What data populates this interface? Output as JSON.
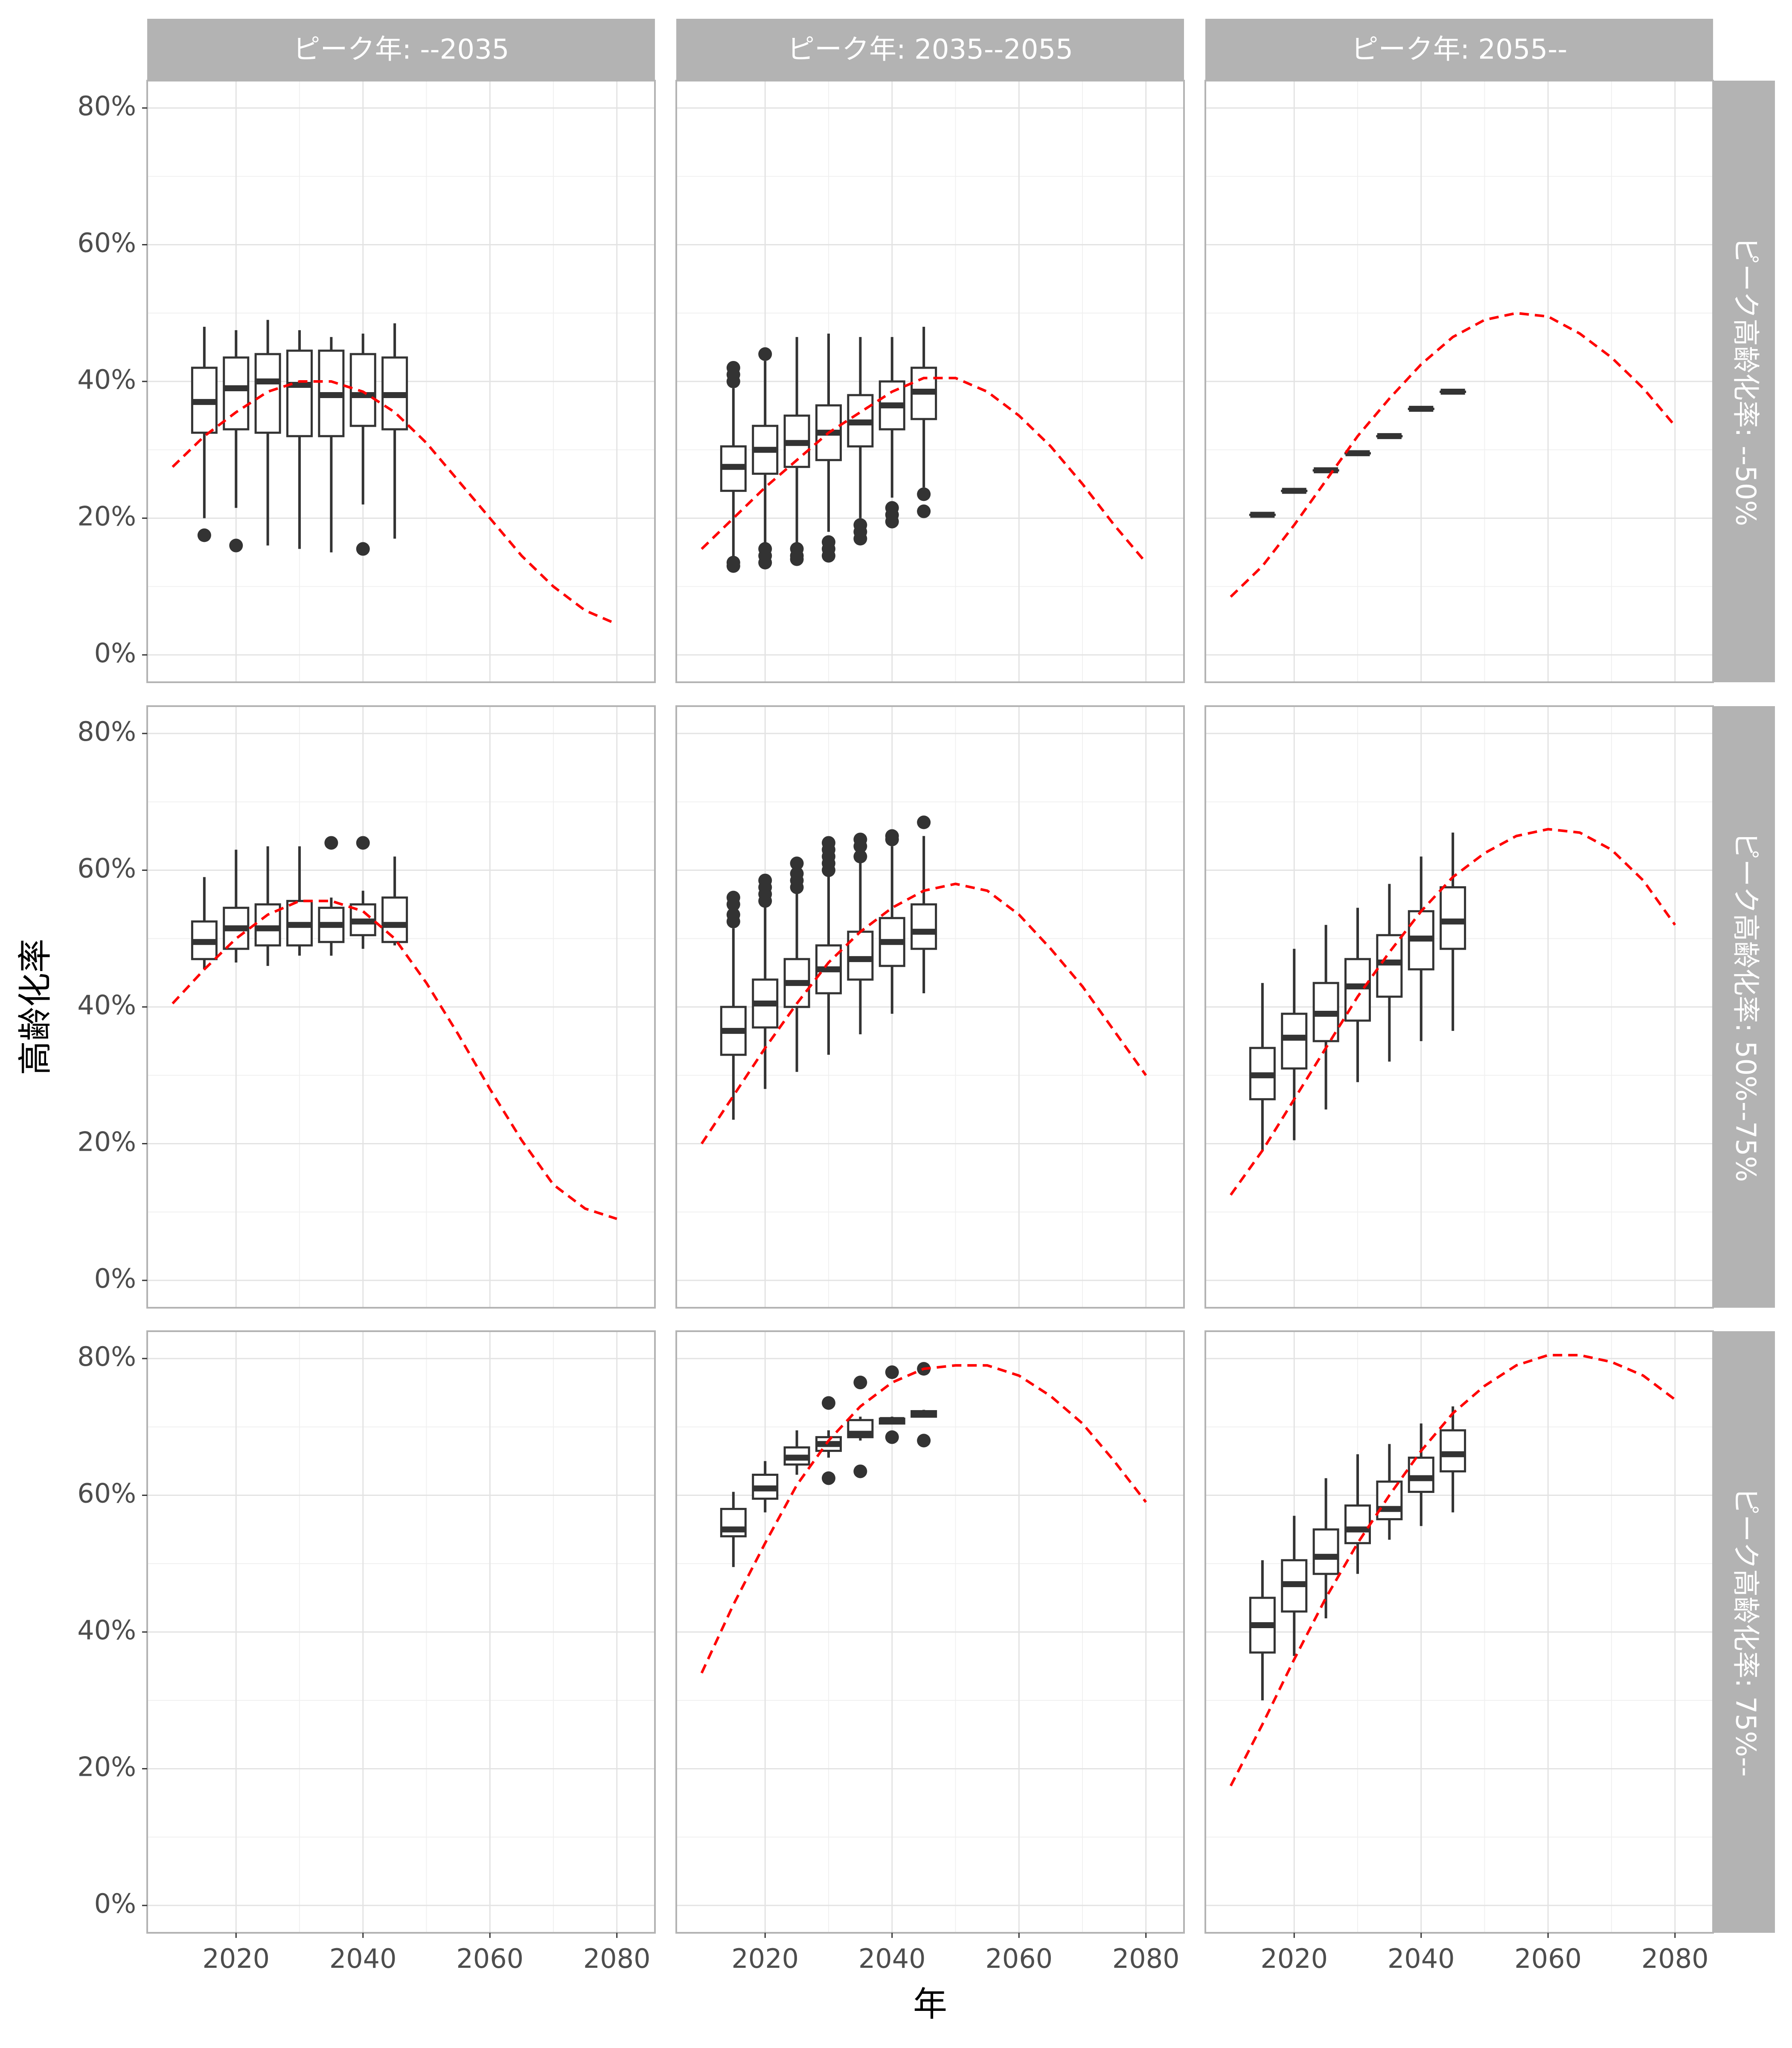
{
  "chart_data": {
    "type": "box",
    "facet_columns": [
      "ピーク年: --2035",
      "ピーク年: 2035--2055",
      "ピーク年: 2055--"
    ],
    "facet_rows": [
      "ピーク高齢化率: --50%",
      "ピーク高齢化率: 50%--75%",
      "ピーク高齢化率: 75%--"
    ],
    "xlabel": "年",
    "ylabel": "高齢化率",
    "xlim": [
      2006,
      2086
    ],
    "ylim": [
      -4,
      84
    ],
    "x_ticks": [
      2020,
      2040,
      2060,
      2080
    ],
    "y_ticks": [
      0,
      20,
      40,
      60,
      80
    ],
    "y_tick_labels": [
      "0%",
      "20%",
      "40%",
      "60%",
      "80%"
    ],
    "grid": true,
    "trend_line": {
      "style": "dashed",
      "color": "#ff0000"
    },
    "box_color": "#333333",
    "panels": [
      {
        "row": 0,
        "col": 0,
        "boxes": [
          {
            "x": 2015,
            "whislo": 20,
            "q1": 32.5,
            "med": 37,
            "q3": 42,
            "whishi": 48,
            "outliers": [
              17.5
            ]
          },
          {
            "x": 2020,
            "whislo": 21.5,
            "q1": 33,
            "med": 39,
            "q3": 43.5,
            "whishi": 47.5,
            "outliers": [
              16
            ]
          },
          {
            "x": 2025,
            "whislo": 16,
            "q1": 32.5,
            "med": 40,
            "q3": 44,
            "whishi": 49,
            "outliers": []
          },
          {
            "x": 2030,
            "whislo": 15.5,
            "q1": 32,
            "med": 39.5,
            "q3": 44.5,
            "whishi": 47.5,
            "outliers": []
          },
          {
            "x": 2035,
            "whislo": 15,
            "q1": 32,
            "med": 38,
            "q3": 44.5,
            "whishi": 46.5,
            "outliers": []
          },
          {
            "x": 2040,
            "whislo": 22,
            "q1": 33.5,
            "med": 38,
            "q3": 44,
            "whishi": 47,
            "outliers": [
              15.5
            ]
          },
          {
            "x": 2045,
            "whislo": 17,
            "q1": 33,
            "med": 38,
            "q3": 43.5,
            "whishi": 48.5,
            "outliers": []
          }
        ],
        "trend": {
          "x": [
            2010,
            2015,
            2020,
            2025,
            2030,
            2035,
            2040,
            2045,
            2050,
            2055,
            2060,
            2065,
            2070,
            2075,
            2080
          ],
          "y": [
            27.5,
            32,
            35.5,
            38.5,
            40,
            40,
            38.5,
            35.5,
            31,
            25.5,
            20,
            14.5,
            10,
            6.5,
            4.5
          ]
        }
      },
      {
        "row": 0,
        "col": 1,
        "boxes": [
          {
            "x": 2015,
            "whislo": 14,
            "q1": 24,
            "med": 27.5,
            "q3": 30.5,
            "whishi": 39,
            "outliers": [
              13,
              13.5,
              40,
              41,
              42
            ]
          },
          {
            "x": 2020,
            "whislo": 16,
            "q1": 26.5,
            "med": 30,
            "q3": 33.5,
            "whishi": 43,
            "outliers": [
              13.5,
              14.5,
              15.5,
              44
            ]
          },
          {
            "x": 2025,
            "whislo": 16,
            "q1": 27.5,
            "med": 31,
            "q3": 35,
            "whishi": 46.5,
            "outliers": [
              14,
              14.5,
              15.5
            ]
          },
          {
            "x": 2030,
            "whislo": 18,
            "q1": 28.5,
            "med": 32.5,
            "q3": 36.5,
            "whishi": 47,
            "outliers": [
              14.5,
              15.5,
              16.5
            ]
          },
          {
            "x": 2035,
            "whislo": 20,
            "q1": 30.5,
            "med": 34,
            "q3": 38,
            "whishi": 46.5,
            "outliers": [
              17,
              18,
              19
            ]
          },
          {
            "x": 2040,
            "whislo": 23,
            "q1": 33,
            "med": 36.5,
            "q3": 40,
            "whishi": 46.5,
            "outliers": [
              19.5,
              20.5,
              21.5
            ]
          },
          {
            "x": 2045,
            "whislo": 24.5,
            "q1": 34.5,
            "med": 38.5,
            "q3": 42,
            "whishi": 48,
            "outliers": [
              21,
              23.5
            ]
          }
        ],
        "trend": {
          "x": [
            2010,
            2015,
            2020,
            2025,
            2030,
            2035,
            2040,
            2045,
            2050,
            2055,
            2060,
            2065,
            2070,
            2075,
            2080
          ],
          "y": [
            15.5,
            20,
            24.5,
            28.5,
            32.5,
            35.5,
            38.5,
            40.5,
            40.5,
            38.5,
            35,
            30.5,
            25,
            19,
            13.5
          ]
        }
      },
      {
        "row": 0,
        "col": 2,
        "boxes": [
          {
            "x": 2015,
            "whislo": 20.5,
            "q1": 20.5,
            "med": 20.5,
            "q3": 20.5,
            "whishi": 20.5,
            "outliers": []
          },
          {
            "x": 2020,
            "whislo": 24,
            "q1": 24,
            "med": 24,
            "q3": 24,
            "whishi": 24,
            "outliers": []
          },
          {
            "x": 2025,
            "whislo": 27,
            "q1": 27,
            "med": 27,
            "q3": 27,
            "whishi": 27,
            "outliers": []
          },
          {
            "x": 2030,
            "whislo": 29.5,
            "q1": 29.5,
            "med": 29.5,
            "q3": 29.5,
            "whishi": 29.5,
            "outliers": []
          },
          {
            "x": 2035,
            "whislo": 32,
            "q1": 32,
            "med": 32,
            "q3": 32,
            "whishi": 32,
            "outliers": []
          },
          {
            "x": 2040,
            "whislo": 36,
            "q1": 36,
            "med": 36,
            "q3": 36,
            "whishi": 36,
            "outliers": []
          },
          {
            "x": 2045,
            "whislo": 38.5,
            "q1": 38.5,
            "med": 38.5,
            "q3": 38.5,
            "whishi": 38.5,
            "outliers": []
          }
        ],
        "trend": {
          "x": [
            2010,
            2015,
            2020,
            2025,
            2030,
            2035,
            2040,
            2045,
            2050,
            2055,
            2060,
            2065,
            2070,
            2075,
            2080
          ],
          "y": [
            8.5,
            13,
            19,
            25.5,
            32,
            37.5,
            42.5,
            46.5,
            49,
            50,
            49.5,
            47,
            43.5,
            39,
            33.5
          ]
        }
      },
      {
        "row": 1,
        "col": 0,
        "boxes": [
          {
            "x": 2015,
            "whislo": 45.5,
            "q1": 47,
            "med": 49.5,
            "q3": 52.5,
            "whishi": 59,
            "outliers": []
          },
          {
            "x": 2020,
            "whislo": 46.5,
            "q1": 48.5,
            "med": 51.5,
            "q3": 54.5,
            "whishi": 63,
            "outliers": []
          },
          {
            "x": 2025,
            "whislo": 46,
            "q1": 49,
            "med": 51.5,
            "q3": 55,
            "whishi": 63.5,
            "outliers": []
          },
          {
            "x": 2030,
            "whislo": 47.5,
            "q1": 49,
            "med": 52,
            "q3": 55.5,
            "whishi": 63.5,
            "outliers": []
          },
          {
            "x": 2035,
            "whislo": 47.5,
            "q1": 49.5,
            "med": 52,
            "q3": 54.5,
            "whishi": 56,
            "outliers": [
              64
            ]
          },
          {
            "x": 2040,
            "whislo": 48.5,
            "q1": 50.5,
            "med": 52.5,
            "q3": 55,
            "whishi": 57,
            "outliers": [
              64
            ]
          },
          {
            "x": 2045,
            "whislo": 49,
            "q1": 49.5,
            "med": 52,
            "q3": 56,
            "whishi": 62,
            "outliers": []
          }
        ],
        "trend": {
          "x": [
            2010,
            2015,
            2020,
            2025,
            2030,
            2035,
            2040,
            2045,
            2050,
            2055,
            2060,
            2065,
            2070,
            2075,
            2080
          ],
          "y": [
            40.5,
            45.5,
            50,
            53.5,
            55.5,
            55.5,
            54,
            50,
            43.5,
            36,
            28,
            20.5,
            14,
            10.5,
            9
          ]
        }
      },
      {
        "row": 1,
        "col": 1,
        "boxes": [
          {
            "x": 2015,
            "whislo": 23.5,
            "q1": 33,
            "med": 36.5,
            "q3": 40,
            "whishi": 51.5,
            "outliers": [
              52.5,
              53.5,
              55,
              56
            ]
          },
          {
            "x": 2020,
            "whislo": 28,
            "q1": 37,
            "med": 40.5,
            "q3": 44,
            "whishi": 55,
            "outliers": [
              55.5,
              56.5,
              57.5,
              58.5
            ]
          },
          {
            "x": 2025,
            "whislo": 30.5,
            "q1": 40,
            "med": 43.5,
            "q3": 47,
            "whishi": 57,
            "outliers": [
              57.5,
              58.5,
              59.5,
              61
            ]
          },
          {
            "x": 2030,
            "whislo": 33,
            "q1": 42,
            "med": 45.5,
            "q3": 49,
            "whishi": 59.5,
            "outliers": [
              60,
              61,
              62,
              63,
              64
            ]
          },
          {
            "x": 2035,
            "whislo": 36,
            "q1": 44,
            "med": 47,
            "q3": 51,
            "whishi": 61.5,
            "outliers": [
              62,
              63.5,
              64.5
            ]
          },
          {
            "x": 2040,
            "whislo": 39,
            "q1": 46,
            "med": 49.5,
            "q3": 53,
            "whishi": 63.5,
            "outliers": [
              64.5,
              65
            ]
          },
          {
            "x": 2045,
            "whislo": 42,
            "q1": 48.5,
            "med": 51,
            "q3": 55,
            "whishi": 65,
            "outliers": [
              67
            ]
          }
        ],
        "trend": {
          "x": [
            2010,
            2015,
            2020,
            2025,
            2030,
            2035,
            2040,
            2045,
            2050,
            2055,
            2060,
            2065,
            2070,
            2075,
            2080
          ],
          "y": [
            20,
            27,
            34,
            40.5,
            46.5,
            51,
            54.5,
            57,
            58,
            57,
            53.5,
            48.5,
            43,
            36.5,
            30
          ]
        }
      },
      {
        "row": 1,
        "col": 2,
        "boxes": [
          {
            "x": 2015,
            "whislo": 19,
            "q1": 26.5,
            "med": 30,
            "q3": 34,
            "whishi": 43.5,
            "outliers": []
          },
          {
            "x": 2020,
            "whislo": 20.5,
            "q1": 31,
            "med": 35.5,
            "q3": 39,
            "whishi": 48.5,
            "outliers": []
          },
          {
            "x": 2025,
            "whislo": 25,
            "q1": 35,
            "med": 39,
            "q3": 43.5,
            "whishi": 52,
            "outliers": []
          },
          {
            "x": 2030,
            "whislo": 29,
            "q1": 38,
            "med": 43,
            "q3": 47,
            "whishi": 54.5,
            "outliers": []
          },
          {
            "x": 2035,
            "whislo": 32,
            "q1": 41.5,
            "med": 46.5,
            "q3": 50.5,
            "whishi": 58,
            "outliers": []
          },
          {
            "x": 2040,
            "whislo": 35,
            "q1": 45.5,
            "med": 50,
            "q3": 54,
            "whishi": 62,
            "outliers": []
          },
          {
            "x": 2045,
            "whislo": 36.5,
            "q1": 48.5,
            "med": 52.5,
            "q3": 57.5,
            "whishi": 65.5,
            "outliers": []
          }
        ],
        "trend": {
          "x": [
            2010,
            2015,
            2020,
            2025,
            2030,
            2035,
            2040,
            2045,
            2050,
            2055,
            2060,
            2065,
            2070,
            2075,
            2080
          ],
          "y": [
            12.5,
            19,
            26.5,
            34,
            41.5,
            48,
            54,
            59,
            62.5,
            65,
            66,
            65.5,
            63,
            58.5,
            52
          ]
        }
      },
      {
        "row": 2,
        "col": 0,
        "boxes": [],
        "trend": {
          "x": [],
          "y": []
        }
      },
      {
        "row": 2,
        "col": 1,
        "boxes": [
          {
            "x": 2015,
            "whislo": 49.5,
            "q1": 54,
            "med": 55,
            "q3": 58,
            "whishi": 60.5,
            "outliers": []
          },
          {
            "x": 2020,
            "whislo": 57.5,
            "q1": 59.5,
            "med": 61,
            "q3": 63,
            "whishi": 65,
            "outliers": []
          },
          {
            "x": 2025,
            "whislo": 63,
            "q1": 64.5,
            "med": 65.5,
            "q3": 67,
            "whishi": 69.5,
            "outliers": []
          },
          {
            "x": 2030,
            "whislo": 65.5,
            "q1": 66.5,
            "med": 67.5,
            "q3": 68.5,
            "whishi": 69.5,
            "outliers": [
              62.5,
              73.5
            ]
          },
          {
            "x": 2035,
            "whislo": 68,
            "q1": 68.5,
            "med": 69,
            "q3": 71,
            "whishi": 71.5,
            "outliers": [
              63.5,
              76.5
            ]
          },
          {
            "x": 2040,
            "whislo": 70.5,
            "q1": 70.5,
            "med": 71,
            "q3": 71.2,
            "whishi": 71.5,
            "outliers": [
              68.5,
              78
            ]
          },
          {
            "x": 2045,
            "whislo": 71.5,
            "q1": 71.5,
            "med": 72,
            "q3": 72.3,
            "whishi": 72.5,
            "outliers": [
              68,
              78.5
            ]
          }
        ],
        "trend": {
          "x": [
            2010,
            2015,
            2020,
            2025,
            2030,
            2035,
            2040,
            2045,
            2050,
            2055,
            2060,
            2065,
            2070,
            2075,
            2080
          ],
          "y": [
            34,
            44,
            53,
            61.5,
            68,
            73,
            76.5,
            78.5,
            79,
            79,
            77.5,
            74.5,
            70.5,
            65,
            59
          ]
        }
      },
      {
        "row": 2,
        "col": 2,
        "boxes": [
          {
            "x": 2015,
            "whislo": 30,
            "q1": 37,
            "med": 41,
            "q3": 45,
            "whishi": 50.5,
            "outliers": []
          },
          {
            "x": 2020,
            "whislo": 36.5,
            "q1": 43,
            "med": 47,
            "q3": 50.5,
            "whishi": 57,
            "outliers": []
          },
          {
            "x": 2025,
            "whislo": 42,
            "q1": 48.5,
            "med": 51,
            "q3": 55,
            "whishi": 62.5,
            "outliers": []
          },
          {
            "x": 2030,
            "whislo": 48.5,
            "q1": 53,
            "med": 55,
            "q3": 58.5,
            "whishi": 66,
            "outliers": []
          },
          {
            "x": 2035,
            "whislo": 53.5,
            "q1": 56.5,
            "med": 58,
            "q3": 62,
            "whishi": 67.5,
            "outliers": []
          },
          {
            "x": 2040,
            "whislo": 55.5,
            "q1": 60.5,
            "med": 62.5,
            "q3": 65.5,
            "whishi": 70.5,
            "outliers": []
          },
          {
            "x": 2045,
            "whislo": 57.5,
            "q1": 63.5,
            "med": 66,
            "q3": 69.5,
            "whishi": 73,
            "outliers": []
          }
        ],
        "trend": {
          "x": [
            2010,
            2015,
            2020,
            2025,
            2030,
            2035,
            2040,
            2045,
            2050,
            2055,
            2060,
            2065,
            2070,
            2075,
            2080
          ],
          "y": [
            17.5,
            26.5,
            36,
            45,
            53,
            60,
            66.5,
            72,
            76,
            79,
            80.5,
            80.5,
            79.5,
            77.5,
            74
          ]
        }
      }
    ]
  }
}
